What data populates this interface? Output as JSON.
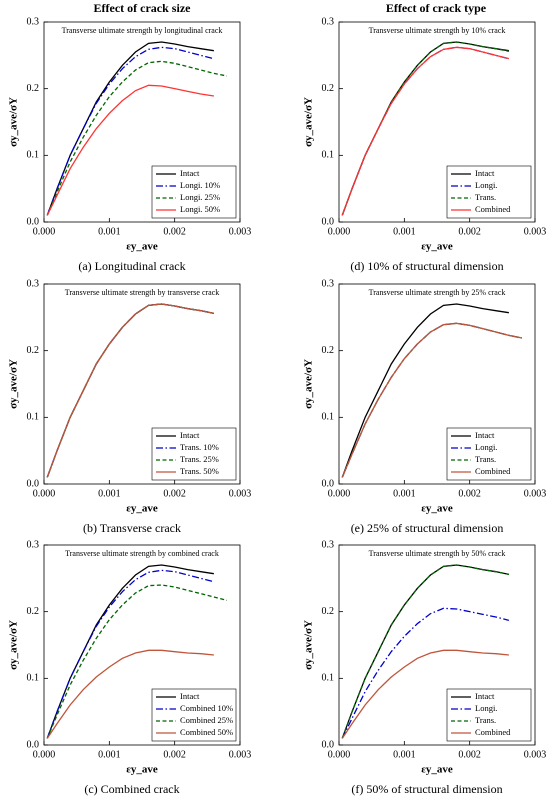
{
  "headings": [
    "Effect of crack size",
    "Effect of crack type"
  ],
  "chart_data": [
    {
      "type": "line",
      "title": "Transverse ultimate strength by longitudinal crack",
      "caption": "(a) Longitudinal crack",
      "xlabel": "εy_ave",
      "ylabel": "σy_ave/σY",
      "xlim": [
        0,
        0.003
      ],
      "ylim": [
        0,
        0.3
      ],
      "xticks": [
        {
          "value": 0,
          "label": "0.000"
        },
        {
          "value": 0.001,
          "label": "0.001"
        },
        {
          "value": 0.002,
          "label": "0.002"
        },
        {
          "value": 0.003,
          "label": "0.003"
        }
      ],
      "yticks": [
        {
          "value": 0,
          "label": "0.0"
        },
        0.1,
        0.2,
        0.3
      ],
      "legend": "lower right",
      "x": [
        5e-05,
        0.0002,
        0.0004,
        0.0006,
        0.0008,
        0.001,
        0.0012,
        0.0014,
        0.0016,
        0.0018,
        0.002,
        0.0022,
        0.0024,
        0.0026,
        0.0028
      ],
      "series": [
        {
          "name": "Intact",
          "color": "#000000",
          "dash": "solid",
          "values": [
            0.01,
            0.05,
            0.1,
            0.14,
            0.18,
            0.21,
            0.235,
            0.255,
            0.268,
            0.27,
            0.267,
            0.263,
            0.26,
            0.257,
            null
          ]
        },
        {
          "name": "Longi. 10%",
          "color": "#0000cc",
          "dash": "dashdot",
          "values": [
            0.01,
            0.05,
            0.1,
            0.14,
            0.178,
            0.207,
            0.23,
            0.248,
            0.259,
            0.262,
            0.26,
            0.255,
            0.25,
            0.245,
            null
          ]
        },
        {
          "name": "Longi. 25%",
          "color": "#006600",
          "dash": "dashed",
          "values": [
            0.01,
            0.045,
            0.09,
            0.127,
            0.16,
            0.188,
            0.21,
            0.228,
            0.239,
            0.241,
            0.238,
            0.233,
            0.228,
            0.223,
            0.219
          ]
        },
        {
          "name": "Longi. 50%",
          "color": "#ff3333",
          "dash": "solid",
          "values": [
            0.01,
            0.04,
            0.08,
            0.112,
            0.14,
            0.163,
            0.182,
            0.197,
            0.205,
            0.204,
            0.2,
            0.196,
            0.192,
            0.189,
            null
          ]
        }
      ]
    },
    {
      "type": "line",
      "title": "Transverse ultimate strength by transverse crack",
      "caption": "(b) Transverse crack",
      "xlabel": "εy_ave",
      "ylabel": "σy_ave/σY",
      "xlim": [
        0,
        0.003
      ],
      "ylim": [
        0,
        0.3
      ],
      "xticks": [
        {
          "value": 0,
          "label": "0.000"
        },
        {
          "value": 0.001,
          "label": "0.001"
        },
        {
          "value": 0.002,
          "label": "0.002"
        },
        {
          "value": 0.003,
          "label": "0.003"
        }
      ],
      "yticks": [
        {
          "value": 0,
          "label": "0.0"
        },
        0.1,
        0.2,
        0.3
      ],
      "legend": "lower right",
      "x": [
        5e-05,
        0.0002,
        0.0004,
        0.0006,
        0.0008,
        0.001,
        0.0012,
        0.0014,
        0.0016,
        0.0018,
        0.002,
        0.0022,
        0.0024,
        0.0026,
        0.0028
      ],
      "series": [
        {
          "name": "Intact",
          "color": "#000000",
          "dash": "solid",
          "values": [
            0.01,
            0.05,
            0.1,
            0.14,
            0.18,
            0.21,
            0.235,
            0.255,
            0.268,
            0.27,
            0.267,
            0.263,
            0.26,
            0.256,
            null
          ]
        },
        {
          "name": "Trans. 10%",
          "color": "#0000cc",
          "dash": "dashdot",
          "values": [
            0.01,
            0.05,
            0.1,
            0.14,
            0.18,
            0.21,
            0.235,
            0.255,
            0.268,
            0.27,
            0.267,
            0.263,
            0.26,
            0.256,
            null
          ]
        },
        {
          "name": "Trans. 25%",
          "color": "#006600",
          "dash": "dashed",
          "values": [
            0.01,
            0.05,
            0.1,
            0.14,
            0.18,
            0.21,
            0.235,
            0.255,
            0.268,
            0.27,
            0.267,
            0.263,
            0.26,
            0.256,
            null
          ]
        },
        {
          "name": "Trans. 50%",
          "color": "#c0553a",
          "dash": "solid",
          "values": [
            0.01,
            0.05,
            0.1,
            0.14,
            0.18,
            0.21,
            0.235,
            0.255,
            0.268,
            0.27,
            0.267,
            0.263,
            0.26,
            0.256,
            null
          ]
        }
      ]
    },
    {
      "type": "line",
      "title": "Transverse ultimate strength by combined crack",
      "caption": "(c) Combined crack",
      "xlabel": "εy_ave",
      "ylabel": "σy_ave/σY",
      "xlim": [
        0,
        0.003
      ],
      "ylim": [
        0,
        0.3
      ],
      "xticks": [
        {
          "value": 0,
          "label": "0.000"
        },
        {
          "value": 0.001,
          "label": "0.001"
        },
        {
          "value": 0.002,
          "label": "0.002"
        },
        {
          "value": 0.003,
          "label": "0.003"
        }
      ],
      "yticks": [
        {
          "value": 0,
          "label": "0.0"
        },
        0.1,
        0.2,
        0.3
      ],
      "legend": "lower right",
      "x": [
        5e-05,
        0.0002,
        0.0004,
        0.0006,
        0.0008,
        0.001,
        0.0012,
        0.0014,
        0.0016,
        0.0018,
        0.002,
        0.0022,
        0.0024,
        0.0026,
        0.0028
      ],
      "series": [
        {
          "name": "Intact",
          "color": "#000000",
          "dash": "solid",
          "values": [
            0.01,
            0.05,
            0.1,
            0.14,
            0.18,
            0.21,
            0.235,
            0.255,
            0.268,
            0.27,
            0.267,
            0.263,
            0.26,
            0.257,
            null
          ]
        },
        {
          "name": "Combined 10%",
          "color": "#0000cc",
          "dash": "dashdot",
          "values": [
            0.01,
            0.05,
            0.1,
            0.14,
            0.178,
            0.207,
            0.23,
            0.248,
            0.259,
            0.262,
            0.26,
            0.255,
            0.25,
            0.245,
            null
          ]
        },
        {
          "name": "Combined 25%",
          "color": "#006600",
          "dash": "dashed",
          "values": [
            0.01,
            0.045,
            0.09,
            0.127,
            0.16,
            0.188,
            0.21,
            0.228,
            0.239,
            0.24,
            0.237,
            0.232,
            0.227,
            0.222,
            0.217
          ]
        },
        {
          "name": "Combined 50%",
          "color": "#c0553a",
          "dash": "solid",
          "values": [
            0.01,
            0.032,
            0.06,
            0.083,
            0.102,
            0.117,
            0.13,
            0.138,
            0.142,
            0.142,
            0.14,
            0.138,
            0.137,
            0.135,
            null
          ]
        }
      ]
    },
    {
      "type": "line",
      "title": "Transverse ultimate strength by 10% crack",
      "caption": "(d) 10% of structural dimension",
      "xlabel": "εy_ave",
      "ylabel": "σy_ave/σY",
      "xlim": [
        0,
        0.003
      ],
      "ylim": [
        0,
        0.3
      ],
      "xticks": [
        {
          "value": 0,
          "label": "0.000"
        },
        {
          "value": 0.001,
          "label": "0.001"
        },
        {
          "value": 0.002,
          "label": "0.002"
        },
        {
          "value": 0.003,
          "label": "0.003"
        }
      ],
      "yticks": [
        {
          "value": 0,
          "label": "0.0"
        },
        0.1,
        0.2,
        0.3
      ],
      "legend": "lower right",
      "x": [
        5e-05,
        0.0002,
        0.0004,
        0.0006,
        0.0008,
        0.001,
        0.0012,
        0.0014,
        0.0016,
        0.0018,
        0.002,
        0.0022,
        0.0024,
        0.0026,
        0.0028
      ],
      "series": [
        {
          "name": "Intact",
          "color": "#000000",
          "dash": "solid",
          "values": [
            0.01,
            0.05,
            0.1,
            0.14,
            0.18,
            0.21,
            0.235,
            0.255,
            0.268,
            0.27,
            0.267,
            0.263,
            0.26,
            0.257,
            null
          ]
        },
        {
          "name": "Longi.",
          "color": "#0000cc",
          "dash": "dashdot",
          "values": [
            0.01,
            0.05,
            0.1,
            0.14,
            0.178,
            0.207,
            0.23,
            0.248,
            0.259,
            0.262,
            0.26,
            0.255,
            0.25,
            0.245,
            null
          ]
        },
        {
          "name": "Trans.",
          "color": "#006600",
          "dash": "dashed",
          "values": [
            0.01,
            0.05,
            0.1,
            0.14,
            0.18,
            0.21,
            0.235,
            0.255,
            0.268,
            0.27,
            0.267,
            0.263,
            0.26,
            0.256,
            null
          ]
        },
        {
          "name": "Combined",
          "color": "#ff3333",
          "dash": "solid",
          "values": [
            0.01,
            0.05,
            0.1,
            0.14,
            0.178,
            0.207,
            0.23,
            0.248,
            0.259,
            0.262,
            0.26,
            0.255,
            0.25,
            0.245,
            null
          ]
        }
      ]
    },
    {
      "type": "line",
      "title": "Transverse ultimate strength by 25% crack",
      "caption": "(e) 25% of structural dimension",
      "xlabel": "εy_ave",
      "ylabel": "σy_ave/σY",
      "xlim": [
        0,
        0.003
      ],
      "ylim": [
        0,
        0.3
      ],
      "xticks": [
        {
          "value": 0,
          "label": "0.000"
        },
        {
          "value": 0.001,
          "label": "0.001"
        },
        {
          "value": 0.002,
          "label": "0.002"
        },
        {
          "value": 0.003,
          "label": "0.003"
        }
      ],
      "yticks": [
        {
          "value": 0,
          "label": "0.0"
        },
        0.1,
        0.2,
        0.3
      ],
      "legend": "lower right",
      "x": [
        5e-05,
        0.0002,
        0.0004,
        0.0006,
        0.0008,
        0.001,
        0.0012,
        0.0014,
        0.0016,
        0.0018,
        0.002,
        0.0022,
        0.0024,
        0.0026,
        0.0028
      ],
      "series": [
        {
          "name": "Intact",
          "color": "#000000",
          "dash": "solid",
          "values": [
            0.01,
            0.05,
            0.1,
            0.14,
            0.18,
            0.21,
            0.235,
            0.255,
            0.268,
            0.27,
            0.267,
            0.263,
            0.26,
            0.257,
            null
          ]
        },
        {
          "name": "Longi.",
          "color": "#0000cc",
          "dash": "dashdot",
          "values": [
            0.01,
            0.045,
            0.09,
            0.127,
            0.16,
            0.188,
            0.21,
            0.228,
            0.239,
            0.241,
            0.238,
            0.233,
            0.228,
            0.223,
            0.219
          ]
        },
        {
          "name": "Trans.",
          "color": "#006600",
          "dash": "dashed",
          "values": [
            0.01,
            0.045,
            0.09,
            0.127,
            0.16,
            0.188,
            0.21,
            0.228,
            0.239,
            0.241,
            0.238,
            0.233,
            0.228,
            0.223,
            0.219
          ]
        },
        {
          "name": "Combined",
          "color": "#c0553a",
          "dash": "solid",
          "values": [
            0.01,
            0.045,
            0.09,
            0.127,
            0.16,
            0.188,
            0.21,
            0.228,
            0.239,
            0.241,
            0.238,
            0.233,
            0.228,
            0.223,
            0.219
          ]
        }
      ]
    },
    {
      "type": "line",
      "title": "Transverse ultimate strength by 50% crack",
      "caption": "(f) 50% of structural dimension",
      "xlabel": "εy_ave",
      "ylabel": "σy_ave/σY",
      "xlim": [
        0,
        0.003
      ],
      "ylim": [
        0,
        0.3
      ],
      "xticks": [
        {
          "value": 0,
          "label": "0.000"
        },
        {
          "value": 0.001,
          "label": "0.001"
        },
        {
          "value": 0.002,
          "label": "0.002"
        },
        {
          "value": 0.003,
          "label": "0.003"
        }
      ],
      "yticks": [
        {
          "value": 0,
          "label": "0.0"
        },
        0.1,
        0.2,
        0.3
      ],
      "legend": "lower right",
      "x": [
        5e-05,
        0.0002,
        0.0004,
        0.0006,
        0.0008,
        0.001,
        0.0012,
        0.0014,
        0.0016,
        0.0018,
        0.002,
        0.0022,
        0.0024,
        0.0026,
        0.0028
      ],
      "series": [
        {
          "name": "Intact",
          "color": "#000000",
          "dash": "solid",
          "values": [
            0.01,
            0.05,
            0.1,
            0.14,
            0.18,
            0.21,
            0.235,
            0.255,
            0.268,
            0.27,
            0.267,
            0.263,
            0.26,
            0.256,
            null
          ]
        },
        {
          "name": "Longi.",
          "color": "#0000cc",
          "dash": "dashdot",
          "values": [
            0.01,
            0.04,
            0.08,
            0.112,
            0.14,
            0.163,
            0.182,
            0.197,
            0.205,
            0.204,
            0.2,
            0.196,
            0.192,
            0.187,
            null
          ]
        },
        {
          "name": "Trans.",
          "color": "#006600",
          "dash": "dashed",
          "values": [
            0.01,
            0.05,
            0.1,
            0.14,
            0.18,
            0.21,
            0.235,
            0.255,
            0.268,
            0.27,
            0.267,
            0.263,
            0.26,
            0.256,
            null
          ]
        },
        {
          "name": "Combined",
          "color": "#c0553a",
          "dash": "solid",
          "values": [
            0.01,
            0.032,
            0.06,
            0.083,
            0.102,
            0.117,
            0.13,
            0.138,
            0.142,
            0.142,
            0.14,
            0.138,
            0.137,
            0.135,
            null
          ]
        }
      ]
    }
  ]
}
